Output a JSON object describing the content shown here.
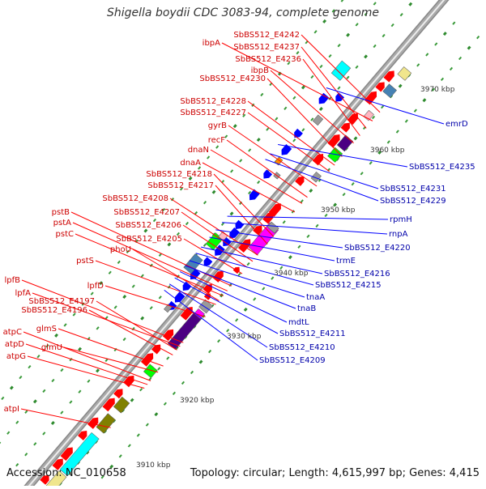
{
  "title": "Shigella boydii CDC 3083-94, complete genome",
  "footer": {
    "accession": "Accession: NC_010658",
    "topology": "Topology: circular; Length: 4,615,997 bp; Genes: 4,415"
  },
  "colors": {
    "backbone": "#aaaaaa",
    "forward_feature": "#ff0000",
    "reverse_feature": "#0000ff",
    "forward_label": "#cc0000",
    "reverse_label": "#0000aa",
    "gene_boxes": [
      "#00ffff",
      "#808000",
      "#ff00ff",
      "#00ff00",
      "#ff8c00",
      "#4b0082",
      "#9a9a9a",
      "#f0e68c",
      "#4682b4",
      "#ffb6c1"
    ]
  },
  "scale_ticks": [
    "3910 kbp",
    "3920 kbp",
    "3930 kbp",
    "3940 kbp",
    "3950 kbp",
    "3960 kbp",
    "3970 kbp"
  ],
  "forward_labels": [
    "SbBS512_E4242",
    "ibpA",
    "SbBS512_E4237",
    "SbBS512_E4236",
    "ibpB",
    "SbBS512_E4230",
    "SbBS512_E4228",
    "SbBS512_E4227",
    "gyrB",
    "recF",
    "dnaN",
    "dnaA",
    "SbBS512_E4218",
    "SbBS512_E4217",
    "SbBS512_E4208",
    "pstB",
    "SbBS512_E4207",
    "pstA",
    "SbBS512_E4206",
    "pstC",
    "SbBS512_E4205",
    "phoU",
    "pstS",
    "lpfD",
    "lpfB",
    "lpfA",
    "SbBS512_E4197",
    "SbBS512_E4196",
    "glmS",
    "atpC",
    "glmU",
    "atpD",
    "atpG",
    "atpI"
  ],
  "reverse_labels": [
    "emrD",
    "SbBS512_E4235",
    "SbBS512_E4231",
    "SbBS512_E4229",
    "rpmH",
    "rnpA",
    "SbBS512_E4220",
    "trmE",
    "SbBS512_E4216",
    "SbBS512_E4215",
    "tnaA",
    "tnaB",
    "mdtL",
    "SbBS512_E4211",
    "SbBS512_E4210",
    "SbBS512_E4209"
  ]
}
